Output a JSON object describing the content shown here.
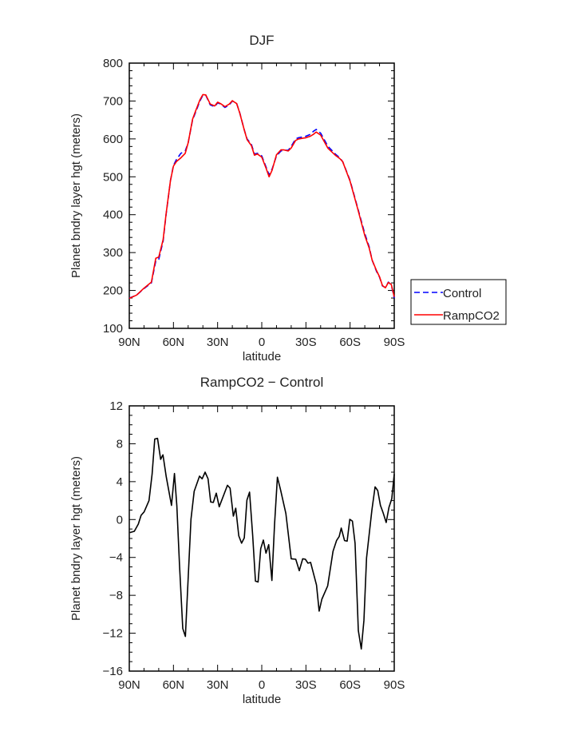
{
  "chart_data": [
    {
      "type": "line",
      "title": "DJF",
      "xlabel": "latitude",
      "ylabel": "Planet bndry layer hgt (meters)",
      "xlim": [
        90,
        -90
      ],
      "ylim": [
        100,
        800
      ],
      "x_ticks": [
        90,
        60,
        30,
        0,
        -30,
        -60,
        -90
      ],
      "x_tick_labels": [
        "90N",
        "60N",
        "30N",
        "0",
        "30S",
        "60S",
        "90S"
      ],
      "y_ticks": [
        100,
        200,
        300,
        400,
        500,
        600,
        700,
        800
      ],
      "y_tick_labels": [
        "100",
        "200",
        "300",
        "400",
        "500",
        "600",
        "700",
        "800"
      ],
      "legend": {
        "placement": "right",
        "entries": [
          "Control",
          "RampCO2"
        ]
      },
      "series": [
        {
          "name": "Control",
          "color": "#0000ff",
          "dash": "dashed",
          "x": [
            90,
            85,
            80,
            75,
            72,
            70,
            67,
            65,
            62,
            60,
            58,
            55,
            52,
            50,
            47,
            45,
            42,
            40,
            38,
            35,
            32,
            30,
            28,
            25,
            22,
            20,
            17,
            15,
            12,
            10,
            7,
            5,
            3,
            0,
            -3,
            -5,
            -7,
            -10,
            -13,
            -15,
            -18,
            -20,
            -23,
            -25,
            -30,
            -33,
            -35,
            -37,
            -40,
            -45,
            -50,
            -53,
            -55,
            -60,
            -65,
            -70,
            -73,
            -75,
            -78,
            -80,
            -82,
            -84,
            -86,
            -88,
            -90
          ],
          "y": [
            180,
            188,
            205,
            220,
            278,
            282,
            330,
            400,
            490,
            530,
            545,
            562,
            568,
            590,
            650,
            670,
            700,
            715,
            715,
            690,
            685,
            695,
            692,
            683,
            690,
            700,
            693,
            670,
            625,
            600,
            585,
            560,
            562,
            555,
            525,
            505,
            520,
            555,
            568,
            570,
            570,
            580,
            600,
            603,
            607,
            612,
            620,
            625,
            615,
            580,
            560,
            550,
            540,
            490,
            420,
            350,
            315,
            280,
            250,
            235,
            212,
            208,
            222,
            215,
            180
          ]
        },
        {
          "name": "RampCO2",
          "color": "#ff0000",
          "dash": "solid",
          "x": [
            90,
            85,
            80,
            75,
            72,
            70,
            67,
            65,
            62,
            60,
            58,
            55,
            52,
            50,
            47,
            45,
            42,
            40,
            38,
            35,
            32,
            30,
            28,
            25,
            22,
            20,
            17,
            15,
            12,
            10,
            7,
            5,
            3,
            0,
            -3,
            -5,
            -7,
            -10,
            -13,
            -15,
            -18,
            -20,
            -23,
            -25,
            -30,
            -33,
            -35,
            -37,
            -40,
            -45,
            -50,
            -53,
            -55,
            -60,
            -65,
            -70,
            -73,
            -75,
            -78,
            -80,
            -82,
            -84,
            -86,
            -88,
            -90
          ],
          "y": [
            179,
            188,
            206,
            222,
            285,
            288,
            334,
            402,
            490,
            528,
            540,
            550,
            562,
            590,
            652,
            673,
            703,
            717,
            716,
            692,
            687,
            697,
            693,
            685,
            692,
            701,
            693,
            669,
            625,
            598,
            582,
            557,
            560,
            552,
            522,
            500,
            517,
            558,
            571,
            571,
            568,
            576,
            596,
            600,
            603,
            607,
            612,
            618,
            610,
            575,
            557,
            548,
            540,
            488,
            418,
            345,
            312,
            280,
            252,
            236,
            213,
            207,
            221,
            216,
            183
          ]
        }
      ]
    },
    {
      "type": "line",
      "title": "RampCO2 − Control",
      "xlabel": "latitude",
      "ylabel": "Planet bndry layer hgt (meters)",
      "xlim": [
        90,
        -90
      ],
      "ylim": [
        -16,
        12
      ],
      "x_ticks": [
        90,
        60,
        30,
        0,
        -30,
        -60,
        -90
      ],
      "x_tick_labels": [
        "90N",
        "60N",
        "30N",
        "0",
        "30S",
        "60S",
        "90S"
      ],
      "y_ticks": [
        -16,
        -12,
        -8,
        -4,
        0,
        4,
        8,
        12
      ],
      "y_tick_labels": [
        "−16",
        "−12",
        "−8",
        "−4",
        "0",
        "4",
        "8",
        "12"
      ],
      "series": [
        {
          "name": "RampCO2 - Control",
          "color": "#000000",
          "dash": "solid",
          "x": [
            89.6,
            86.6,
            83.9,
            82.0,
            79.9,
            76.6,
            74.5,
            72.7,
            70.8,
            68.7,
            67.1,
            64.9,
            61.3,
            59.3,
            57.7,
            55.9,
            53.7,
            51.9,
            48.1,
            45.9,
            42.3,
            40.5,
            38.5,
            36.5,
            34.7,
            32.9,
            30.9,
            28.9,
            23.3,
            21.5,
            19.3,
            17.7,
            15.6,
            13.7,
            11.9,
            10.1,
            8.3,
            6.2,
            4.3,
            2.5,
            0.7,
            -1.1,
            -2.9,
            -4.7,
            -6.9,
            -8.7,
            -10.6,
            -12.8,
            -16.4,
            -20.0,
            -23.1,
            -25.5,
            -27.8,
            -29.6,
            -31.4,
            -33.2,
            -37.2,
            -39.0,
            -40.8,
            -44.8,
            -48.4,
            -50.8,
            -52.6,
            -54.0,
            -56.2,
            -58.0,
            -59.8,
            -61.6,
            -63.4,
            -65.6,
            -67.6,
            -69.4,
            -71.2,
            -74.8,
            -77.0,
            -78.8,
            -80.6,
            -82.4,
            -84.5,
            -86.4,
            -88.3,
            -90
          ],
          "y": [
            -1.38,
            -1.24,
            -0.48,
            0.45,
            0.81,
            2.0,
            4.8,
            8.5,
            8.57,
            6.35,
            6.83,
            4.52,
            1.49,
            4.86,
            1.43,
            -4.75,
            -11.5,
            -12.34,
            0.02,
            2.98,
            4.58,
            4.3,
            5.0,
            4.3,
            1.85,
            1.8,
            2.78,
            1.35,
            3.62,
            3.31,
            0.36,
            1.2,
            -1.72,
            -2.5,
            -1.94,
            2.05,
            2.89,
            -1.66,
            -6.5,
            -6.6,
            -3.07,
            -2.17,
            -3.55,
            -2.65,
            -6.44,
            -0.54,
            4.47,
            3.12,
            0.64,
            -4.14,
            -4.19,
            -5.4,
            -4.14,
            -4.19,
            -4.61,
            -4.53,
            -6.92,
            -9.67,
            -8.41,
            -7.0,
            -3.35,
            -2.22,
            -1.8,
            -0.9,
            -2.22,
            -2.28,
            0.02,
            -0.17,
            -2.5,
            -11.72,
            -13.66,
            -10.66,
            -4.05,
            1.0,
            3.45,
            3.06,
            1.49,
            0.73,
            -0.31,
            1.29,
            2.19,
            4.8
          ]
        }
      ]
    }
  ]
}
